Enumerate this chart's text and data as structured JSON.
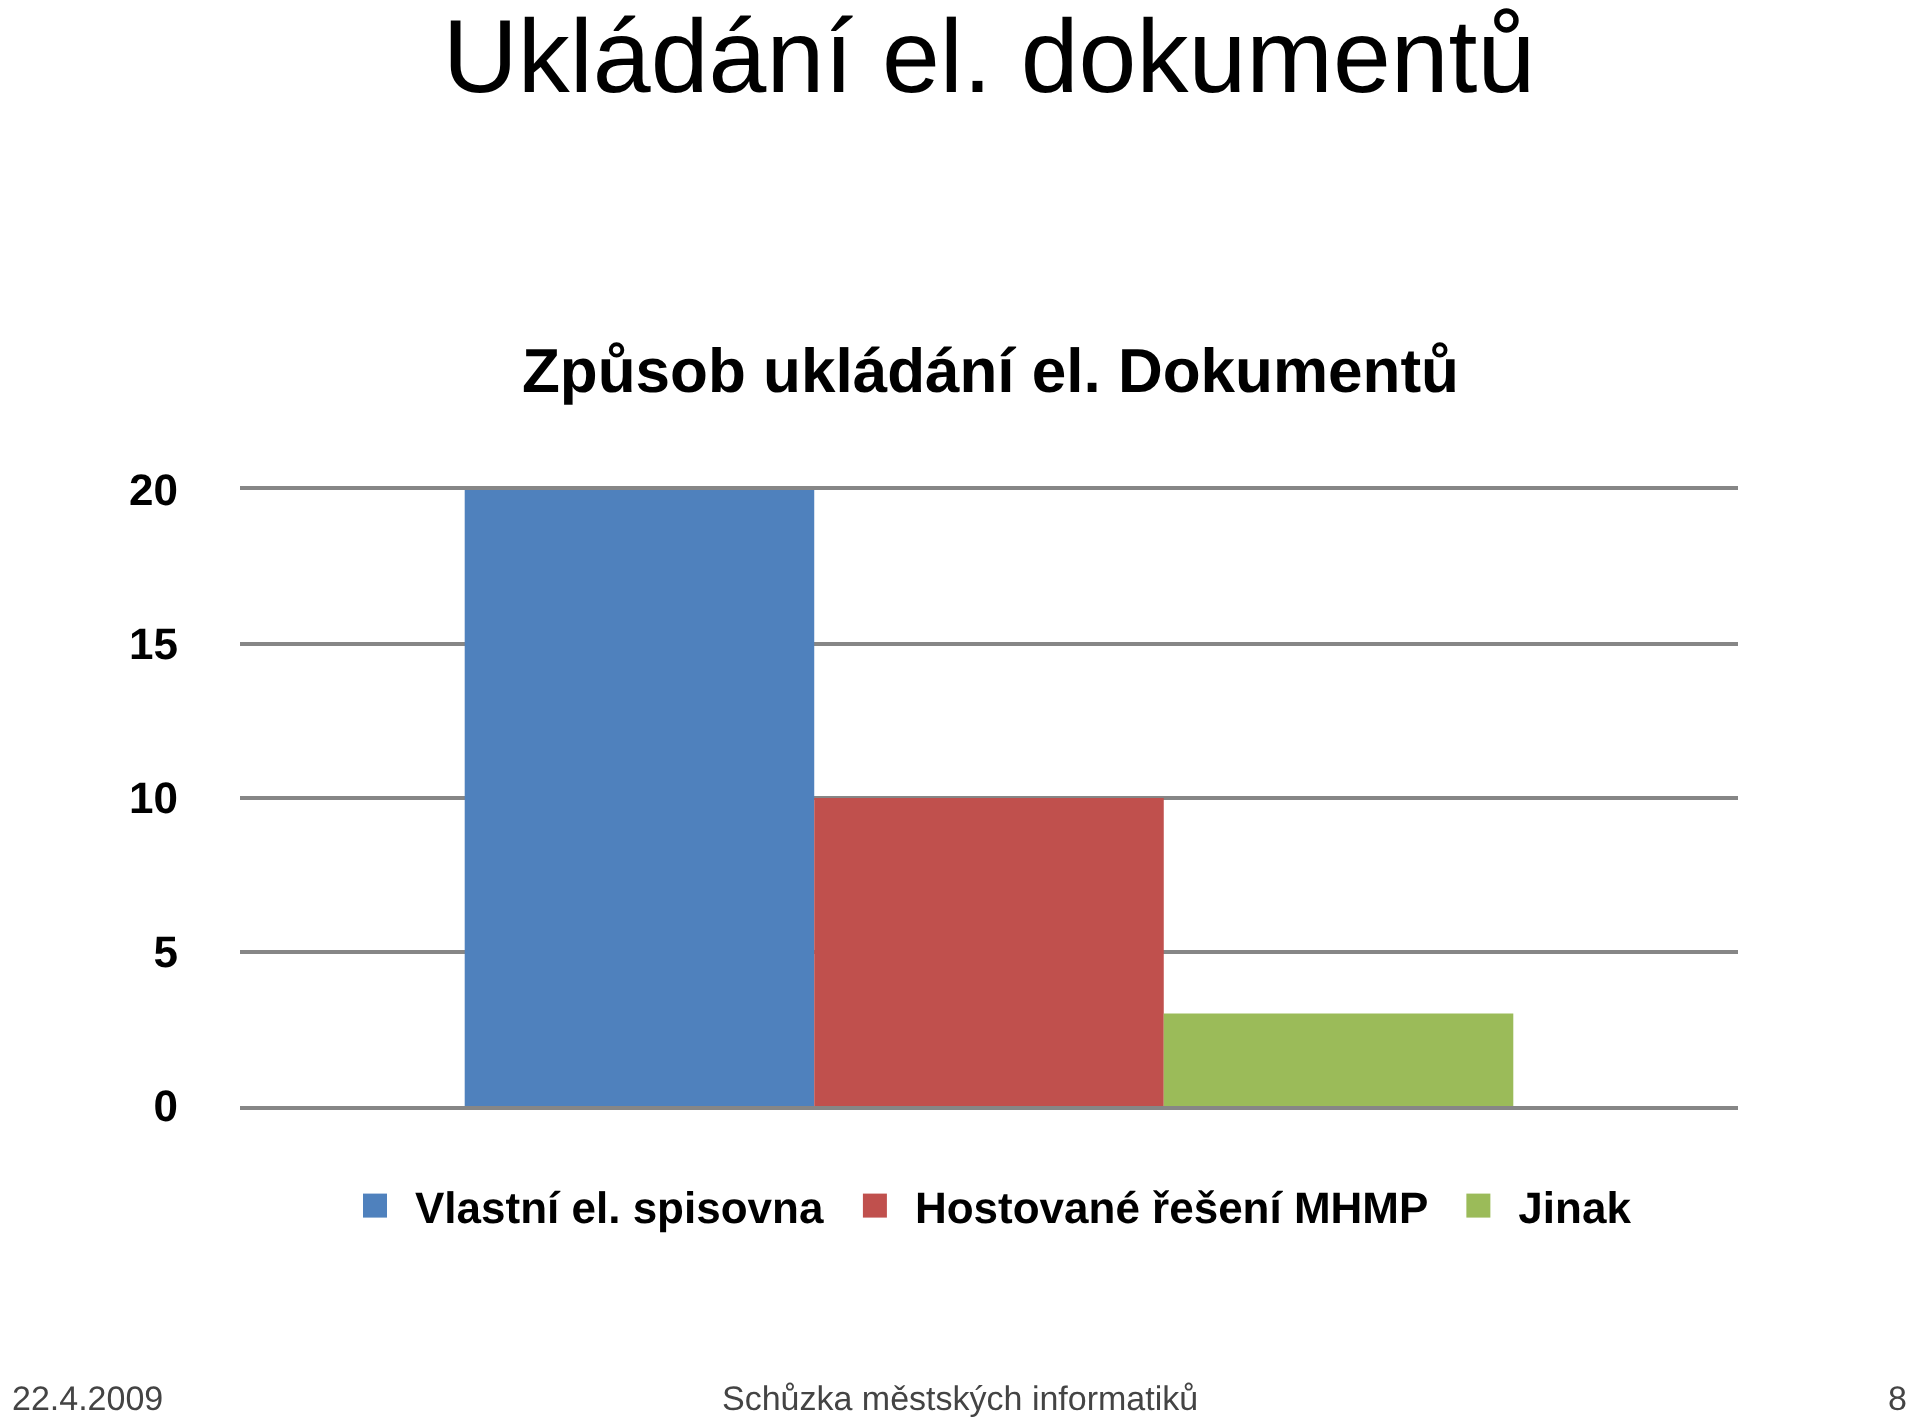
{
  "chart_data": {
    "type": "bar",
    "title": "Ukládání el. dokumentů",
    "subtitle": "Způsob ukládání el. Dokumentů",
    "categories": [
      null
    ],
    "series": [
      {
        "name": "Vlastní el. spisovna",
        "color": "#4f81bd",
        "values": [
          20
        ]
      },
      {
        "name": "Hostované řešení MHMP",
        "color": "#c0504d",
        "values": [
          10
        ]
      },
      {
        "name": "Jinak",
        "color": "#9bbb59",
        "values": [
          3
        ]
      }
    ],
    "ylim": [
      0,
      20
    ],
    "yticks": [
      0,
      5,
      10,
      15,
      20
    ],
    "grid": "y",
    "legend": "bottom",
    "tick_labels": "y",
    "annotations": [
      "22.4.2009",
      "Schůzka městských informatiků",
      "8"
    ]
  }
}
